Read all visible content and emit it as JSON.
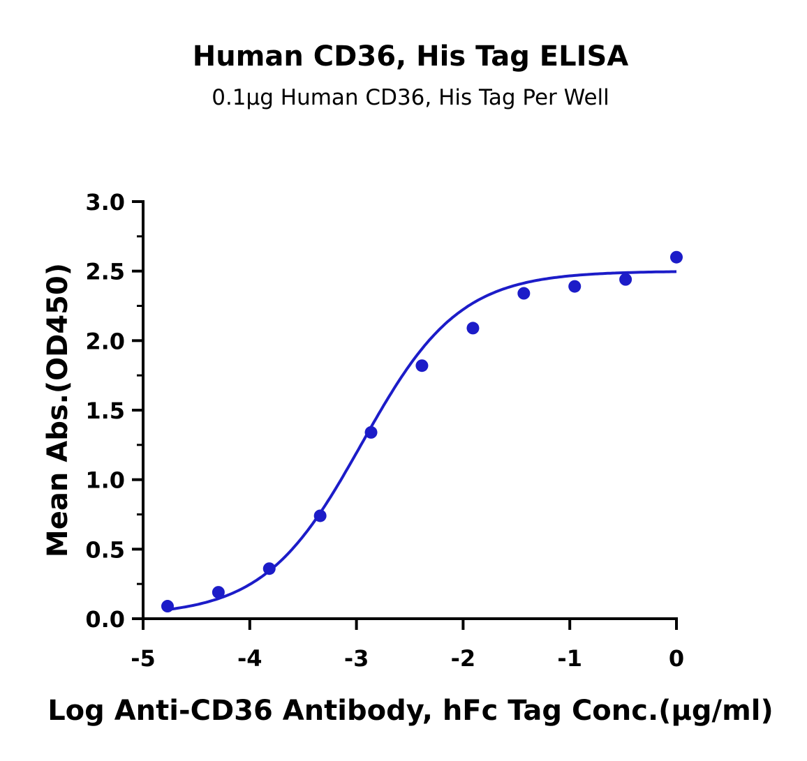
{
  "chart_data": {
    "type": "scatter",
    "title": "Human CD36, His Tag ELISA",
    "subtitle": "0.1μg Human CD36, His Tag Per Well",
    "xlabel": "Log Anti-CD36 Antibody, hFc Tag Conc.(μg/ml)",
    "ylabel": "Mean Abs.(OD450)",
    "xlim": [
      -5,
      0
    ],
    "ylim": [
      0,
      3.0
    ],
    "xticks": [
      "-5",
      "-4",
      "-3",
      "-2",
      "-1",
      "0"
    ],
    "yticks": [
      "0.0",
      "0.5",
      "1.0",
      "1.5",
      "2.0",
      "2.5",
      "3.0"
    ],
    "grid": false,
    "color": "#1c1cc8",
    "series": [
      {
        "x": [
          -4.771,
          -4.294,
          -3.817,
          -3.34,
          -2.863,
          -2.386,
          -1.908,
          -1.431,
          -0.954,
          -0.477,
          0
        ],
        "y": [
          0.09,
          0.19,
          0.36,
          0.74,
          1.34,
          1.82,
          2.09,
          2.34,
          2.39,
          2.44,
          2.6
        ]
      }
    ],
    "fit": {
      "model": "4PL",
      "bottom": 0.02,
      "top": 2.5,
      "logEC50": -2.95,
      "hill": 0.95
    }
  }
}
